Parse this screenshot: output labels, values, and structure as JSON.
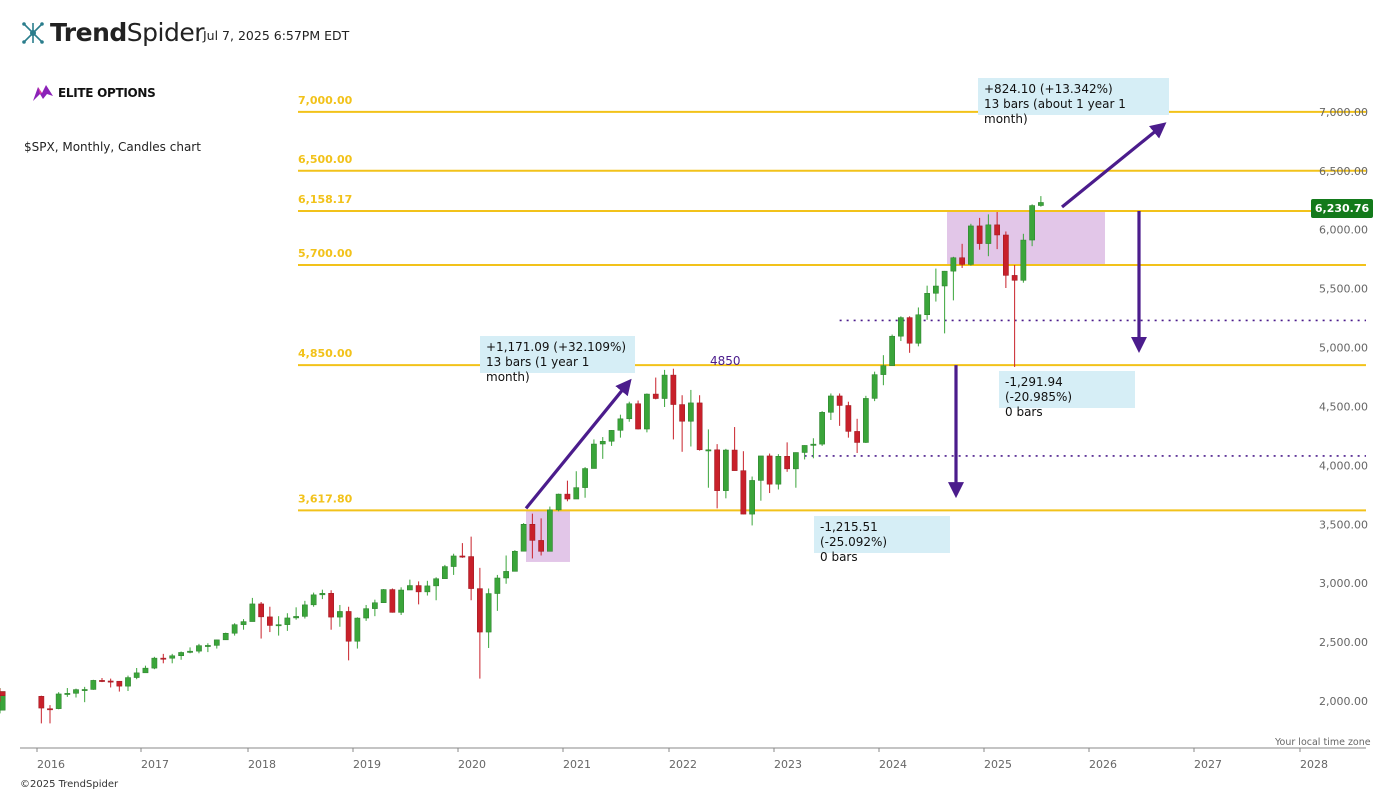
{
  "header": {
    "brand_bold": "Trend",
    "brand_light": "Spider",
    "timestamp": "Jul 7, 2025 6:57PM EDT",
    "logo_icon": "trendspider-logo-icon"
  },
  "watermark": {
    "label": "ELITE OPTIONS",
    "icon": "elite-options-logo-icon"
  },
  "subtitle": "$SPX, Monthly, Candles chart",
  "footer": {
    "copyright": "©2025 TrendSpider",
    "timezone_note": "Your local time zone"
  },
  "last_price_tag": "6,230.76",
  "annotations": {
    "a1_line1": "+1,171.09 (+32.109%)",
    "a1_line2": "13 bars (1 year 1 month)",
    "a2_line1": "+824.10 (+13.342%)",
    "a2_line2": "13 bars (about 1 year 1 month)",
    "a3_line1": "-1,291.94 (-20.985%)",
    "a3_line2": "0 bars",
    "a4_line1": "-1,215.51 (-25.092%)",
    "a4_line2": "0 bars",
    "level_note": "4850"
  },
  "chart_data": {
    "type": "candlestick",
    "x_ticks": [
      "2016",
      "2017",
      "2018",
      "2019",
      "2020",
      "2021",
      "2022",
      "2023",
      "2024",
      "2025",
      "2026",
      "2027",
      "2028"
    ],
    "y_ticks": [
      2000,
      2500,
      3000,
      3500,
      4000,
      4500,
      5000,
      5500,
      6000,
      6500,
      7000
    ],
    "y_tick_labels": [
      "2,000.00",
      "2,500.00",
      "3,000.00",
      "3,500.00",
      "4,000.00",
      "4,500.00",
      "5,000.00",
      "5,500.00",
      "6,000.00",
      "6,500.00",
      "7,000.00"
    ],
    "ylim": [
      1700,
      7300
    ],
    "horizontal_levels": [
      {
        "value": 7000,
        "label": "7,000.00"
      },
      {
        "value": 6500,
        "label": "6,500.00"
      },
      {
        "value": 6158.17,
        "label": "6,158.17"
      },
      {
        "value": 5700,
        "label": "5,700.00"
      },
      {
        "value": 4850,
        "label": "4,850.00"
      },
      {
        "value": 3617.8,
        "label": "3,617.80"
      }
    ],
    "dotted_levels": [
      {
        "value": 5230,
        "from": "2023-08"
      },
      {
        "value": 4080,
        "from": "2023-04"
      }
    ],
    "last_price": 6230.76,
    "colors": {
      "up": "#3aa53a",
      "down": "#c8202a",
      "level": "#f2c21a",
      "arrow": "#4b1c8c",
      "zone": "#dfc0e6",
      "label_box": "#d6eef6"
    },
    "candles": [
      [
        "2015-10",
        1922,
        2075,
        1895,
        2065
      ],
      [
        "2015-11",
        2065,
        2110,
        2020,
        2080
      ],
      [
        "2015-12",
        2080,
        2105,
        1995,
        2045
      ],
      [
        "2016-01",
        2040,
        2045,
        1810,
        1940
      ],
      [
        "2016-02",
        1935,
        1965,
        1810,
        1932
      ],
      [
        "2016-03",
        1935,
        2075,
        1930,
        2060
      ],
      [
        "2016-04",
        2060,
        2110,
        2035,
        2065
      ],
      [
        "2016-05",
        2065,
        2105,
        2030,
        2097
      ],
      [
        "2016-06",
        2097,
        2120,
        1990,
        2098
      ],
      [
        "2016-07",
        2098,
        2180,
        2095,
        2175
      ],
      [
        "2016-08",
        2175,
        2195,
        2160,
        2170
      ],
      [
        "2016-09",
        2170,
        2190,
        2115,
        2168
      ],
      [
        "2016-10",
        2168,
        2170,
        2080,
        2126
      ],
      [
        "2016-11",
        2126,
        2215,
        2085,
        2199
      ],
      [
        "2016-12",
        2199,
        2280,
        2185,
        2239
      ],
      [
        "2017-01",
        2239,
        2300,
        2245,
        2279
      ],
      [
        "2017-02",
        2279,
        2375,
        2270,
        2364
      ],
      [
        "2017-03",
        2364,
        2400,
        2320,
        2363
      ],
      [
        "2017-04",
        2363,
        2400,
        2320,
        2384
      ],
      [
        "2017-05",
        2384,
        2420,
        2350,
        2412
      ],
      [
        "2017-06",
        2412,
        2455,
        2405,
        2423
      ],
      [
        "2017-07",
        2423,
        2485,
        2405,
        2470
      ],
      [
        "2017-08",
        2470,
        2490,
        2415,
        2472
      ],
      [
        "2017-09",
        2472,
        2520,
        2445,
        2519
      ],
      [
        "2017-10",
        2519,
        2580,
        2520,
        2575
      ],
      [
        "2017-11",
        2575,
        2660,
        2555,
        2648
      ],
      [
        "2017-12",
        2648,
        2695,
        2605,
        2674
      ],
      [
        "2018-01",
        2674,
        2875,
        2680,
        2824
      ],
      [
        "2018-02",
        2824,
        2840,
        2530,
        2714
      ],
      [
        "2018-03",
        2714,
        2800,
        2585,
        2641
      ],
      [
        "2018-04",
        2641,
        2720,
        2555,
        2648
      ],
      [
        "2018-05",
        2648,
        2745,
        2595,
        2705
      ],
      [
        "2018-06",
        2705,
        2795,
        2690,
        2718
      ],
      [
        "2018-07",
        2718,
        2850,
        2700,
        2816
      ],
      [
        "2018-08",
        2816,
        2920,
        2800,
        2901
      ],
      [
        "2018-09",
        2901,
        2945,
        2865,
        2914
      ],
      [
        "2018-10",
        2914,
        2940,
        2605,
        2712
      ],
      [
        "2018-11",
        2712,
        2815,
        2630,
        2760
      ],
      [
        "2018-12",
        2760,
        2800,
        2345,
        2507
      ],
      [
        "2019-01",
        2507,
        2710,
        2445,
        2704
      ],
      [
        "2019-02",
        2704,
        2815,
        2680,
        2784
      ],
      [
        "2019-03",
        2784,
        2860,
        2720,
        2834
      ],
      [
        "2019-04",
        2834,
        2950,
        2845,
        2946
      ],
      [
        "2019-05",
        2946,
        2955,
        2750,
        2752
      ],
      [
        "2019-06",
        2752,
        2965,
        2730,
        2942
      ],
      [
        "2019-07",
        2942,
        3030,
        2955,
        2980
      ],
      [
        "2019-08",
        2980,
        3015,
        2820,
        2926
      ],
      [
        "2019-09",
        2926,
        3020,
        2895,
        2977
      ],
      [
        "2019-10",
        2977,
        3050,
        2855,
        3038
      ],
      [
        "2019-11",
        3038,
        3155,
        3050,
        3141
      ],
      [
        "2019-12",
        3141,
        3250,
        3070,
        3231
      ],
      [
        "2020-01",
        3231,
        3340,
        3215,
        3226
      ],
      [
        "2020-02",
        3226,
        3395,
        2855,
        2954
      ],
      [
        "2020-03",
        2954,
        3130,
        2190,
        2585
      ],
      [
        "2020-04",
        2585,
        2955,
        2450,
        2912
      ],
      [
        "2020-05",
        2912,
        3070,
        2765,
        3044
      ],
      [
        "2020-06",
        3044,
        3235,
        2995,
        3100
      ],
      [
        "2020-07",
        3100,
        3280,
        3115,
        3271
      ],
      [
        "2020-08",
        3271,
        3510,
        3280,
        3500
      ],
      [
        "2020-09",
        3500,
        3590,
        3210,
        3363
      ],
      [
        "2020-10",
        3363,
        3550,
        3235,
        3270
      ],
      [
        "2020-11",
        3270,
        3650,
        3280,
        3622
      ],
      [
        "2020-12",
        3622,
        3760,
        3610,
        3756
      ],
      [
        "2021-01",
        3756,
        3870,
        3695,
        3714
      ],
      [
        "2021-02",
        3714,
        3950,
        3725,
        3811
      ],
      [
        "2021-03",
        3811,
        3985,
        3725,
        3973
      ],
      [
        "2021-04",
        3973,
        4220,
        3990,
        4181
      ],
      [
        "2021-05",
        4181,
        4240,
        4055,
        4204
      ],
      [
        "2021-06",
        4204,
        4300,
        4165,
        4297
      ],
      [
        "2021-07",
        4297,
        4430,
        4235,
        4395
      ],
      [
        "2021-08",
        4395,
        4540,
        4370,
        4523
      ],
      [
        "2021-09",
        4523,
        4550,
        4305,
        4308
      ],
      [
        "2021-10",
        4308,
        4610,
        4280,
        4605
      ],
      [
        "2021-11",
        4605,
        4745,
        4560,
        4567
      ],
      [
        "2021-12",
        4567,
        4810,
        4495,
        4766
      ],
      [
        "2022-01",
        4766,
        4820,
        4220,
        4516
      ],
      [
        "2022-02",
        4516,
        4595,
        4115,
        4374
      ],
      [
        "2022-03",
        4374,
        4640,
        4160,
        4530
      ],
      [
        "2022-04",
        4530,
        4595,
        4125,
        4132
      ],
      [
        "2022-05",
        4132,
        4305,
        3810,
        4132
      ],
      [
        "2022-06",
        4132,
        4180,
        3635,
        3785
      ],
      [
        "2022-07",
        3785,
        4140,
        3720,
        4130
      ],
      [
        "2022-08",
        4130,
        4325,
        3955,
        3955
      ],
      [
        "2022-09",
        3955,
        4120,
        3585,
        3586
      ],
      [
        "2022-10",
        3586,
        3905,
        3490,
        3872
      ],
      [
        "2022-11",
        3872,
        4080,
        3700,
        4080
      ],
      [
        "2022-12",
        4080,
        4100,
        3765,
        3840
      ],
      [
        "2023-01",
        3840,
        4095,
        3795,
        4077
      ],
      [
        "2023-02",
        4077,
        4195,
        3945,
        3970
      ],
      [
        "2023-03",
        3970,
        4110,
        3810,
        4109
      ],
      [
        "2023-04",
        4109,
        4170,
        4050,
        4169
      ],
      [
        "2023-05",
        4169,
        4230,
        4060,
        4180
      ],
      [
        "2023-06",
        4180,
        4460,
        4165,
        4450
      ],
      [
        "2023-07",
        4450,
        4610,
        4385,
        4589
      ],
      [
        "2023-08",
        4589,
        4610,
        4335,
        4508
      ],
      [
        "2023-09",
        4508,
        4540,
        4235,
        4288
      ],
      [
        "2023-10",
        4288,
        4395,
        4105,
        4194
      ],
      [
        "2023-11",
        4194,
        4590,
        4190,
        4568
      ],
      [
        "2023-12",
        4568,
        4795,
        4545,
        4770
      ],
      [
        "2024-01",
        4770,
        4935,
        4680,
        4846
      ],
      [
        "2024-02",
        4846,
        5110,
        4855,
        5096
      ],
      [
        "2024-03",
        5096,
        5265,
        5055,
        5254
      ],
      [
        "2024-04",
        5254,
        5265,
        4955,
        5036
      ],
      [
        "2024-05",
        5036,
        5340,
        5010,
        5278
      ],
      [
        "2024-06",
        5278,
        5525,
        5235,
        5460
      ],
      [
        "2024-07",
        5460,
        5670,
        5390,
        5522
      ],
      [
        "2024-08",
        5522,
        5650,
        5120,
        5648
      ],
      [
        "2024-09",
        5648,
        5770,
        5400,
        5762
      ],
      [
        "2024-10",
        5762,
        5880,
        5675,
        5705
      ],
      [
        "2024-11",
        5705,
        6050,
        5695,
        6032
      ],
      [
        "2024-12",
        6032,
        6100,
        5830,
        5882
      ],
      [
        "2025-01",
        5882,
        6130,
        5775,
        6041
      ],
      [
        "2025-02",
        6041,
        6150,
        5835,
        5955
      ],
      [
        "2025-03",
        5955,
        5985,
        5505,
        5612
      ],
      [
        "2025-04",
        5612,
        5700,
        4835,
        5570
      ],
      [
        "2025-05",
        5570,
        5965,
        5550,
        5912
      ],
      [
        "2025-06",
        5912,
        6215,
        5860,
        6205
      ],
      [
        "2025-07",
        6205,
        6285,
        6195,
        6231
      ]
    ]
  }
}
